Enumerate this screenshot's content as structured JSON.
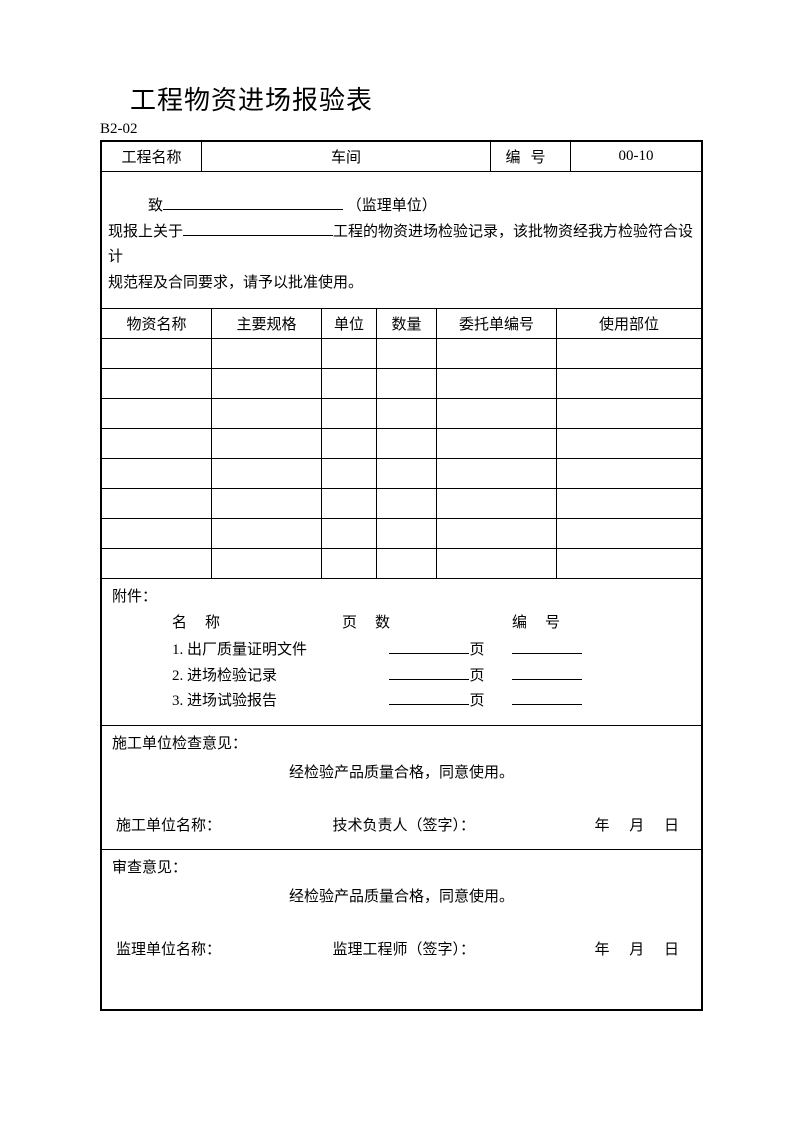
{
  "title": "工程物资进场报验表",
  "form_code": "B2-02",
  "header": {
    "project_label": "工程名称",
    "project_name": "车间",
    "number_label": "编号",
    "number_value": "00-10"
  },
  "memo": {
    "to_label": "致",
    "supervisor_note": "（监理单位）",
    "line2_prefix": "现报上关于",
    "line2_suffix": "工程的物资进场检验记录，该批物资经我方检验符合设计",
    "line3": "规范程及合同要求，请予以批准使用。"
  },
  "materials": {
    "columns": [
      "物资名称",
      "主要规格",
      "单位",
      "数量",
      "委托单编号",
      "使用部位"
    ],
    "blank_row_count": 8
  },
  "attachments": {
    "label": "附件：",
    "head": [
      "名称",
      "页数",
      "编号"
    ],
    "items": [
      {
        "idx": "1.",
        "name": "出厂质量证明文件",
        "page_suffix": "页"
      },
      {
        "idx": "2.",
        "name": "进场检验记录",
        "page_suffix": "页"
      },
      {
        "idx": "3.",
        "name": "进场试验报告",
        "page_suffix": "页"
      }
    ]
  },
  "opinion1": {
    "head": "施工单位检查意见：",
    "body": "经检验产品质量合格，同意使用。",
    "unit_label": "施工单位名称：",
    "signer_label": "技术负责人（签字）：",
    "date_y": "年",
    "date_m": "月",
    "date_d": "日"
  },
  "opinion2": {
    "head": "审查意见：",
    "body": "经检验产品质量合格，同意使用。",
    "unit_label": "监理单位名称：",
    "signer_label": "监理工程师（签字）：",
    "date_y": "年",
    "date_m": "月",
    "date_d": "日"
  }
}
